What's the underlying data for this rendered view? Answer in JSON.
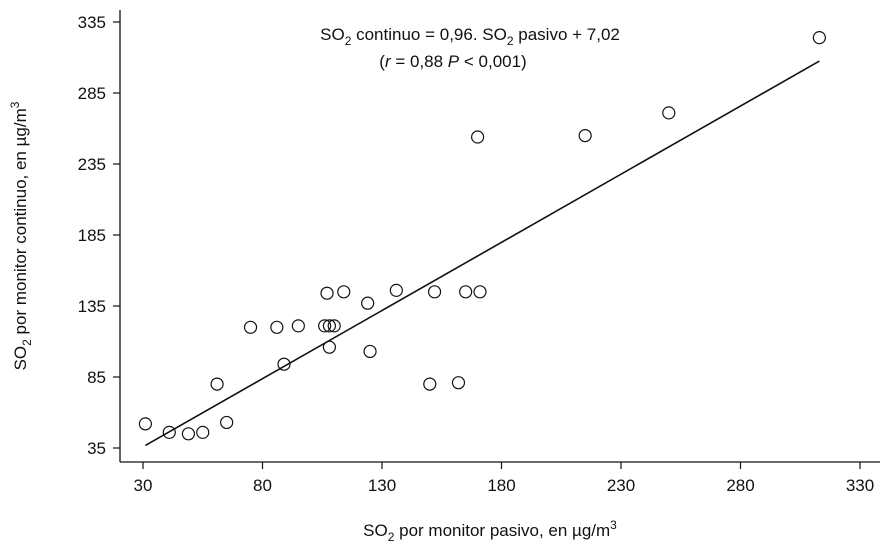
{
  "chart_data": {
    "type": "scatter",
    "equation": {
      "lhs_main": "SO",
      "lhs_sub": "2",
      "lhs_rest": " continuo = 0,96. SO",
      "rhs_sub": "2",
      "rhs_rest": " pasivo + 7,02"
    },
    "stats": {
      "open": "(",
      "r": "r",
      "r_value": " = 0,88 ",
      "p": "P",
      "p_value": " < 0,001)"
    },
    "xlabel": {
      "pre": "SO",
      "sub": "2",
      "mid": " por monitor pasivo, en µg/m",
      "sup": "3"
    },
    "ylabel": {
      "pre": "SO",
      "sub": "2",
      "mid": " por monitor continuo, en µg/m",
      "sup": "3"
    },
    "xlim": [
      30,
      330
    ],
    "ylim": [
      35,
      335
    ],
    "xticks": [
      "30",
      "80",
      "130",
      "180",
      "230",
      "280",
      "330"
    ],
    "yticks": [
      "35",
      "85",
      "135",
      "185",
      "235",
      "285",
      "335"
    ],
    "regression": {
      "slope": 0.96,
      "intercept": 7.02,
      "x_start": 31,
      "x_end": 313
    },
    "points": [
      {
        "x": 31,
        "y": 52
      },
      {
        "x": 41,
        "y": 46
      },
      {
        "x": 49,
        "y": 45
      },
      {
        "x": 55,
        "y": 46
      },
      {
        "x": 61,
        "y": 80
      },
      {
        "x": 65,
        "y": 53
      },
      {
        "x": 75,
        "y": 120
      },
      {
        "x": 86,
        "y": 120
      },
      {
        "x": 89,
        "y": 94
      },
      {
        "x": 95,
        "y": 121
      },
      {
        "x": 106,
        "y": 121
      },
      {
        "x": 107,
        "y": 144
      },
      {
        "x": 108,
        "y": 121
      },
      {
        "x": 108,
        "y": 106
      },
      {
        "x": 110,
        "y": 121
      },
      {
        "x": 114,
        "y": 145
      },
      {
        "x": 124,
        "y": 137
      },
      {
        "x": 125,
        "y": 103
      },
      {
        "x": 136,
        "y": 146
      },
      {
        "x": 150,
        "y": 80
      },
      {
        "x": 152,
        "y": 145
      },
      {
        "x": 162,
        "y": 81
      },
      {
        "x": 165,
        "y": 145
      },
      {
        "x": 170,
        "y": 254
      },
      {
        "x": 171,
        "y": 145
      },
      {
        "x": 215,
        "y": 255
      },
      {
        "x": 250,
        "y": 271
      },
      {
        "x": 313,
        "y": 324
      }
    ]
  }
}
